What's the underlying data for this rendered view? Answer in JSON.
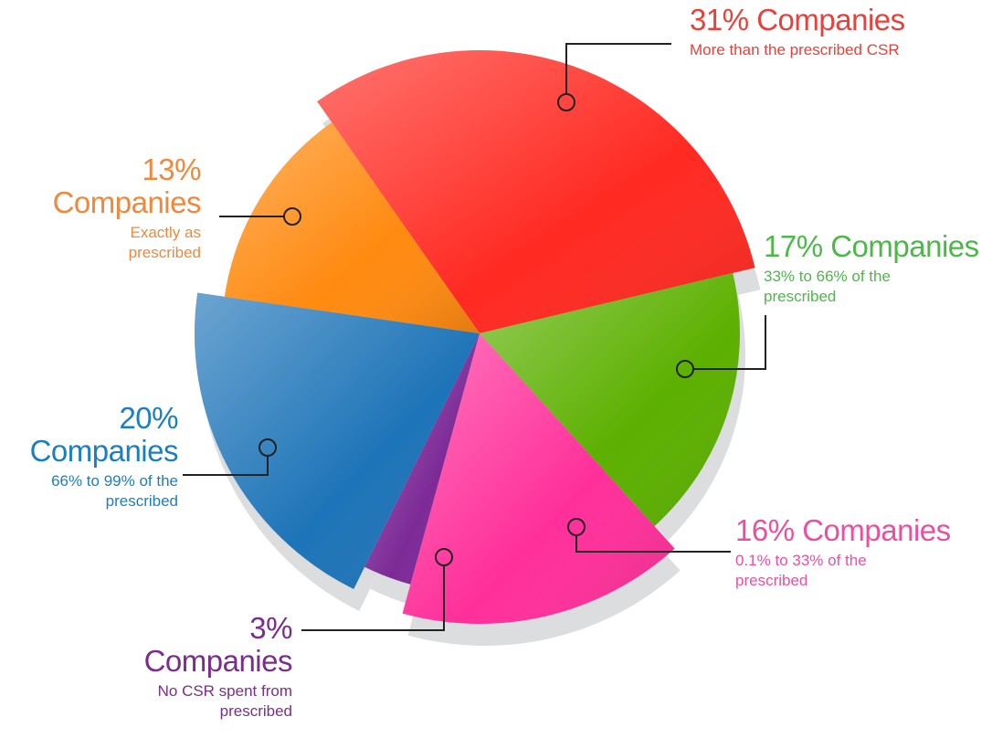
{
  "chart_data": {
    "type": "pie",
    "categories": [
      "More than the prescribed CSR",
      "33% to 66% of the prescribed",
      "0.1% to 33% of the prescribed",
      "No CSR spent from prescribed",
      "66% to 99% of the prescribed",
      "Exactly as prescribed"
    ],
    "values": [
      31,
      17,
      16,
      3,
      20,
      13
    ],
    "value_labels": [
      "31% Companies",
      "17% Companies",
      "16% Companies",
      "3% Companies",
      "20% Companies",
      "13% Companies"
    ],
    "colors": [
      "#ff2a22",
      "#5cb000",
      "#ff2f9a",
      "#7d2a97",
      "#1d74b8",
      "#ff8a10"
    ],
    "label_colors": [
      "#e8403a",
      "#4cb848",
      "#ec4fa0",
      "#7b2d8e",
      "#1a7fc1",
      "#f0883c"
    ]
  }
}
